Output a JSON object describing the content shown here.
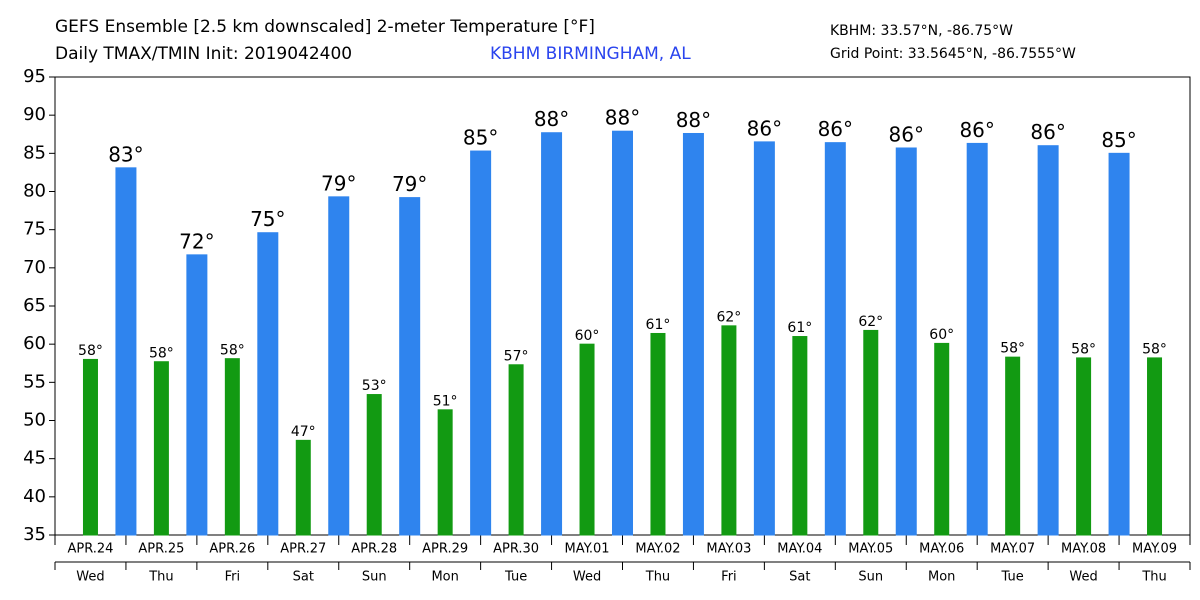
{
  "chart_data": {
    "type": "bar",
    "title": "GEFS Ensemble [2.5 km downscaled] 2-meter Temperature [°F]",
    "subtitle": "Daily TMAX/TMIN Init: 2019042400",
    "location": "KBHM BIRMINGHAM, AL",
    "station": "KBHM: 33.57°N, -86.75°W",
    "grid_point": "Grid Point: 33.5645°N, -86.7555°W",
    "categories": [
      "APR.24",
      "APR.25",
      "APR.26",
      "APR.27",
      "APR.28",
      "APR.29",
      "APR.30",
      "MAY.01",
      "MAY.02",
      "MAY.03",
      "MAY.04",
      "MAY.05",
      "MAY.06",
      "MAY.07",
      "MAY.08",
      "MAY.09"
    ],
    "weekdays": [
      "Wed",
      "Thu",
      "Fri",
      "Sat",
      "Sun",
      "Mon",
      "Tue",
      "Wed",
      "Thu",
      "Fri",
      "Sat",
      "Sun",
      "Mon",
      "Tue",
      "Wed",
      "Thu"
    ],
    "series": [
      {
        "name": "TMAX",
        "color": "#2f84ee",
        "values": [
          83.1,
          71.7,
          74.6,
          79.3,
          79.2,
          85.3,
          87.7,
          87.9,
          87.6,
          86.5,
          86.4,
          85.7,
          86.3,
          86.0,
          85.0,
          null
        ],
        "value_labels": [
          "83°",
          "72°",
          "75°",
          "79°",
          "79°",
          "85°",
          "88°",
          "88°",
          "88°",
          "86°",
          "86°",
          "86°",
          "86°",
          "86°",
          "85°",
          null
        ]
      },
      {
        "name": "TMIN",
        "color": "#129a12",
        "values": [
          58.0,
          57.7,
          58.1,
          47.4,
          53.4,
          51.4,
          57.3,
          60.0,
          61.4,
          62.4,
          61.0,
          61.8,
          60.1,
          58.3,
          58.2,
          58.2
        ],
        "value_labels": [
          "58°",
          "58°",
          "58°",
          "47°",
          "53°",
          "51°",
          "57°",
          "60°",
          "61°",
          "62°",
          "61°",
          "62°",
          "60°",
          "58°",
          "58°",
          "58°"
        ]
      }
    ],
    "ylim": [
      35,
      95
    ],
    "yticks": [
      35,
      40,
      45,
      50,
      55,
      60,
      65,
      70,
      75,
      80,
      85,
      90,
      95
    ],
    "grid": false
  }
}
